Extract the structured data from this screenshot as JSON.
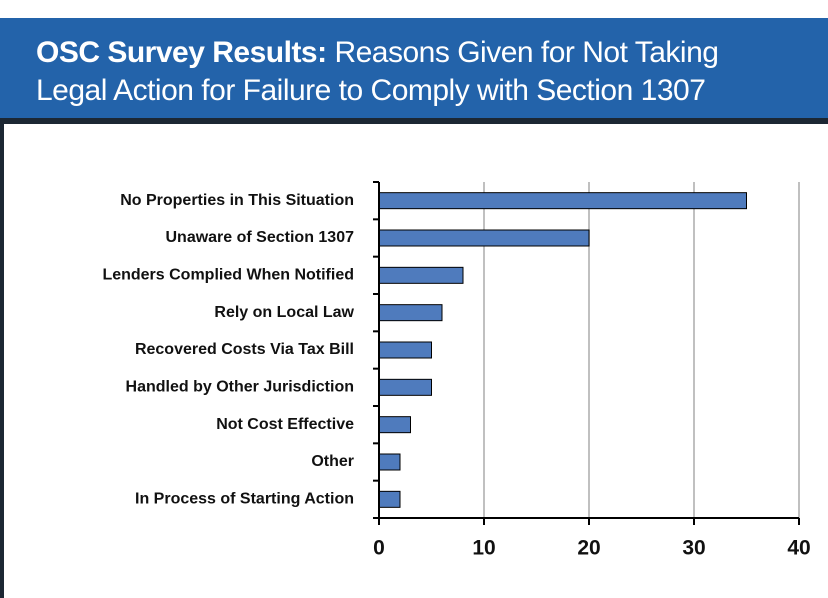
{
  "chart_data": {
    "type": "bar",
    "orientation": "horizontal",
    "title": "OSC Survey Results:",
    "subtitle": "Reasons Given for Not Taking Legal Action for Failure to Comply with Section 1307",
    "categories": [
      "No Properties in This Situation",
      "Unaware of Section 1307",
      "Lenders Complied When Notified",
      "Rely on Local Law",
      "Recovered Costs Via Tax Bill",
      "Handled by Other Jurisdiction",
      "Not Cost Effective",
      "Other",
      "In Process of Starting Action"
    ],
    "values": [
      35,
      20,
      8,
      6,
      5,
      5,
      3,
      2,
      2
    ],
    "color": "#4f7bbd",
    "xlim": [
      0,
      40
    ],
    "xticks": [
      0,
      10,
      20,
      30,
      40
    ],
    "grid": true
  }
}
